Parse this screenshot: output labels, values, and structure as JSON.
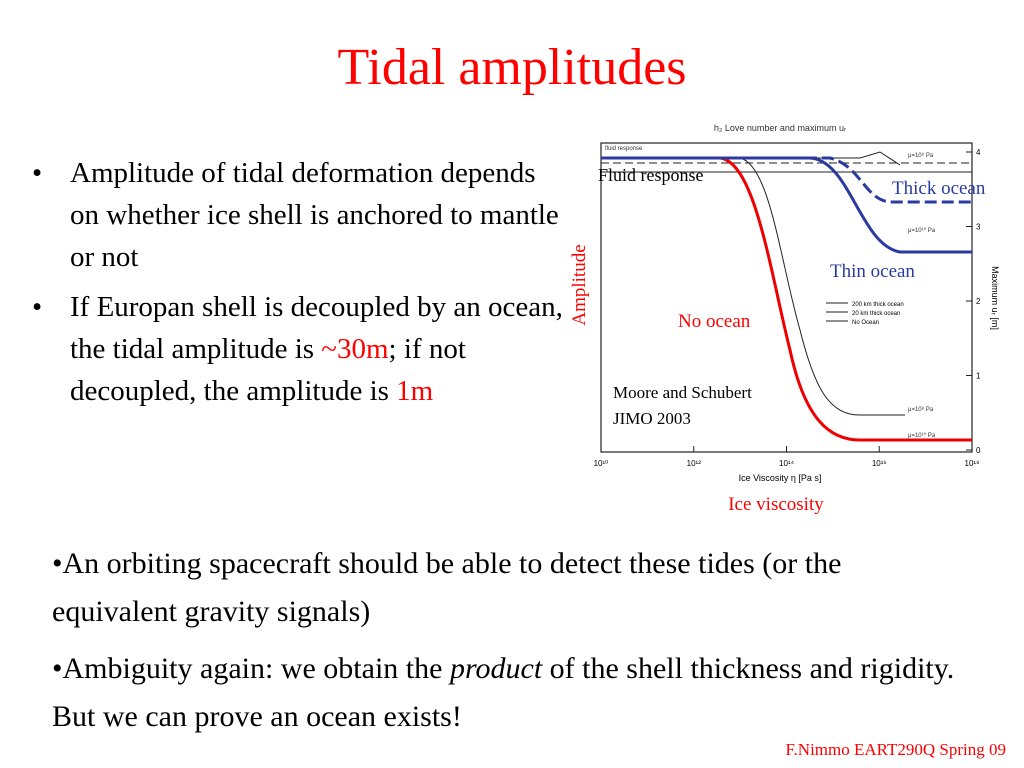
{
  "title": "Tidal amplitudes",
  "bullet_marker": "•",
  "bullets": [
    [
      {
        "text": "Amplitude of tidal deformation depends on whether ice shell is anchored to mantle or not"
      }
    ],
    [
      {
        "text": "If Europan shell is decoupled by an ocean, the tidal amplitude is "
      },
      {
        "text": "~30m",
        "color": "#ff0000"
      },
      {
        "text": "; if not decoupled, the amplitude is "
      },
      {
        "text": "1m",
        "color": "#ff0000"
      }
    ]
  ],
  "figure": {
    "title": "h₂ Love number and maximum uᵣ",
    "x_label": "Ice Viscosity η [Pa s]",
    "y2_label": "Maximum uᵣ [m]",
    "x_ticks": [
      "10¹⁰",
      "10¹²",
      "10¹⁴",
      "10¹⁶",
      "10¹⁸"
    ],
    "y2_ticks": [
      "0",
      "1",
      "2",
      "3",
      "4"
    ],
    "legend": [
      "200 km thick ocean",
      "20 km thick ocean",
      "No Ocean"
    ],
    "inner_labels": [
      "fluid response",
      "μ=10⁸ Pa",
      "μ=10¹⁰ Pa",
      "μ=10⁸ Pa",
      "μ=10¹⁰ Pa"
    ],
    "labels": {
      "fluid": "Fluid response",
      "thick": "Thick ocean",
      "thin": "Thin ocean",
      "none": "No ocean",
      "source1": "Moore and Schubert",
      "source2": "JIMO 2003",
      "y": "Amplitude",
      "x": "Ice viscosity"
    }
  },
  "notes": [
    [
      {
        "text": "•An orbiting spacecraft should be able to detect these tides (or the equivalent gravity signals)"
      }
    ],
    [
      {
        "text": "•Ambiguity again: we obtain the "
      },
      {
        "text": "product",
        "italic": true
      },
      {
        "text": " of the shell thickness and rigidity. But we can prove an ocean exists!"
      }
    ]
  ],
  "footer": "F.Nimmo EART290Q Spring 09"
}
